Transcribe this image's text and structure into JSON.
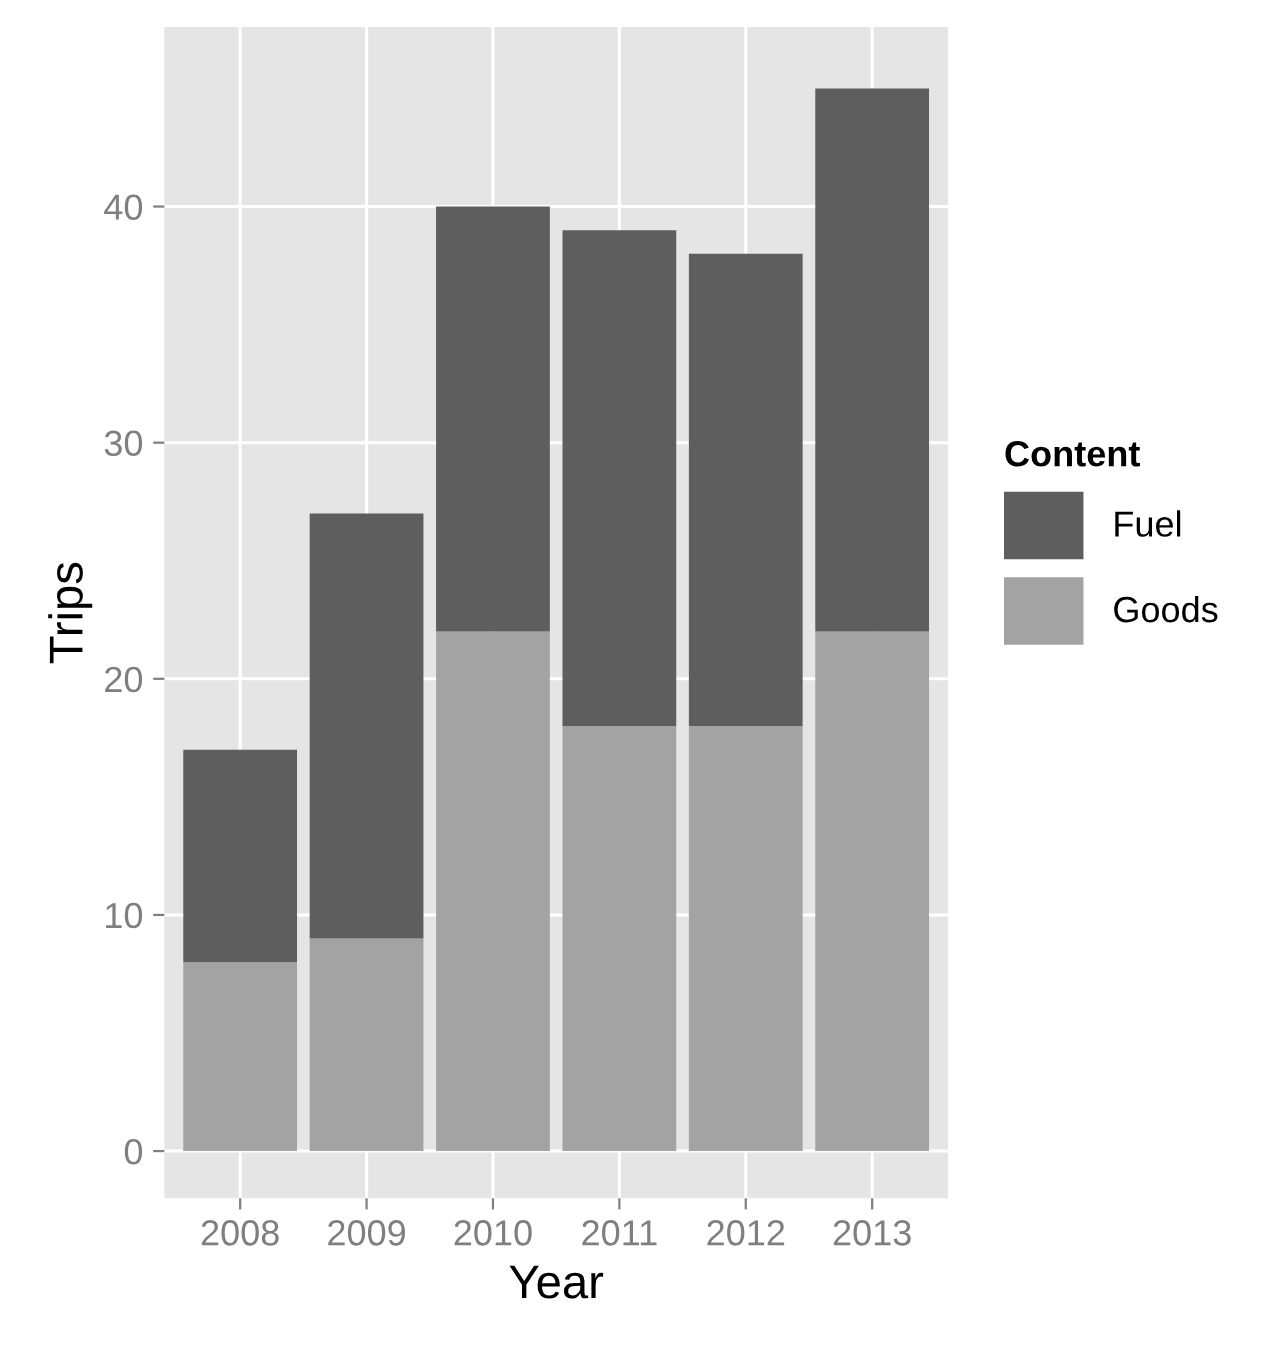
{
  "chart_data": {
    "type": "bar",
    "xlabel": "Year",
    "ylabel": "Trips",
    "legend_title": "Content",
    "categories": [
      "2008",
      "2009",
      "2010",
      "2011",
      "2012",
      "2013"
    ],
    "stacked": true,
    "series": [
      {
        "name": "Goods",
        "color": "#a3a3a3",
        "values": [
          8,
          9,
          22,
          18,
          18,
          22
        ]
      },
      {
        "name": "Fuel",
        "color": "#5e5e5e",
        "values": [
          9,
          18,
          18,
          21,
          20,
          23
        ]
      }
    ],
    "ylim": [
      -2,
      47.6
    ],
    "yticks": [
      0,
      10,
      20,
      30,
      40
    ],
    "grid": true,
    "legend": "right"
  }
}
